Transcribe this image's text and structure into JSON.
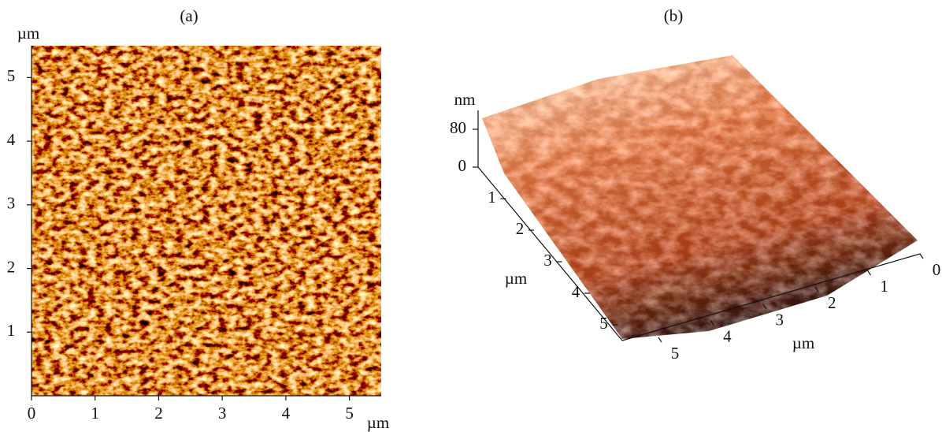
{
  "panel_a": {
    "label": "(a)",
    "y_unit": "µm",
    "x_unit": "µm",
    "xlim": [
      0,
      5.5
    ],
    "ylim": [
      0,
      5.5
    ],
    "xticks": [
      0,
      1,
      2,
      3,
      4,
      5
    ],
    "yticks": [
      1,
      2,
      3,
      4,
      5
    ]
  },
  "panel_b": {
    "label": "(b)",
    "z_unit": "nm",
    "zlim": [
      0,
      80
    ],
    "zticks": [
      0,
      80
    ],
    "y_unit": "µm",
    "yticks": [
      1,
      2,
      3,
      4,
      5
    ],
    "x_unit": "µm",
    "xticks": [
      0,
      1,
      2,
      3,
      4,
      5
    ]
  }
}
